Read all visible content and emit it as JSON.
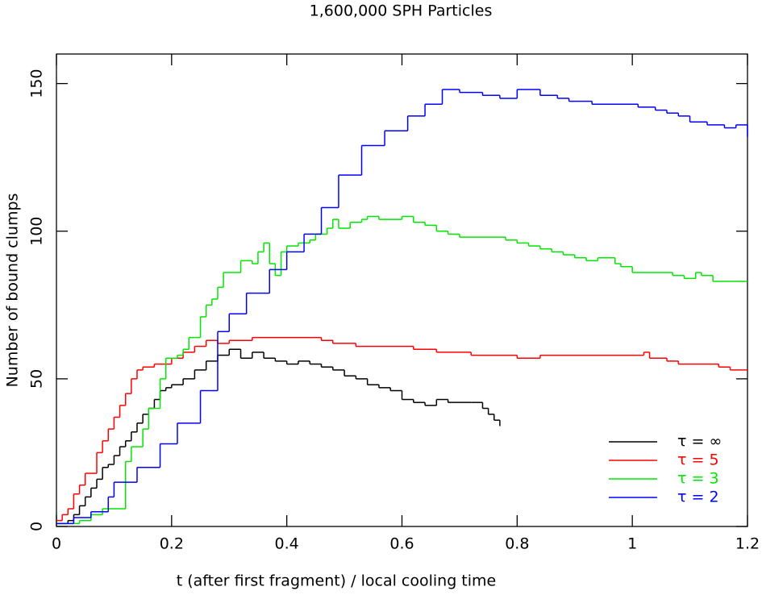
{
  "chart_data": {
    "type": "line",
    "step": true,
    "title": "1,600,000 SPH Particles",
    "x_label": "t (after first fragment) / local cooling time",
    "y_label": "Number of bound clumps",
    "xlim": [
      0,
      1.2
    ],
    "ylim": [
      0,
      160
    ],
    "xticks": [
      0,
      0.2,
      0.4,
      0.6,
      0.8,
      1,
      1.2
    ],
    "yticks": [
      0,
      50,
      100,
      150
    ],
    "legend": "lower right",
    "series": [
      {
        "name": "τ = ∞",
        "color": "#000000",
        "x": [
          0,
          0.02,
          0.03,
          0.04,
          0.05,
          0.06,
          0.07,
          0.08,
          0.09,
          0.1,
          0.11,
          0.12,
          0.13,
          0.14,
          0.15,
          0.16,
          0.17,
          0.18,
          0.19,
          0.2,
          0.22,
          0.24,
          0.26,
          0.28,
          0.3,
          0.32,
          0.34,
          0.36,
          0.38,
          0.4,
          0.42,
          0.44,
          0.46,
          0.48,
          0.5,
          0.52,
          0.54,
          0.56,
          0.58,
          0.6,
          0.62,
          0.64,
          0.66,
          0.68,
          0.72,
          0.74,
          0.75,
          0.76,
          0.77
        ],
        "values": [
          1,
          2,
          4,
          7,
          10,
          13,
          16,
          20,
          21,
          24,
          27,
          29,
          32,
          35,
          38,
          40,
          43,
          46,
          47,
          48,
          50,
          53,
          56,
          58,
          60,
          57,
          59,
          57,
          56,
          55,
          56,
          55,
          54,
          53,
          51,
          50,
          48,
          47,
          46,
          43,
          42,
          41,
          43,
          42,
          42,
          40,
          38,
          36,
          34
        ]
      },
      {
        "name": "τ = 5",
        "color": "#ff0000",
        "x": [
          0,
          0.01,
          0.02,
          0.03,
          0.04,
          0.05,
          0.07,
          0.08,
          0.09,
          0.1,
          0.11,
          0.12,
          0.13,
          0.14,
          0.15,
          0.17,
          0.2,
          0.22,
          0.24,
          0.26,
          0.28,
          0.3,
          0.34,
          0.46,
          0.48,
          0.52,
          0.62,
          0.66,
          0.72,
          0.8,
          0.84,
          1.02,
          1.03,
          1.06,
          1.08,
          1.15,
          1.17,
          1.2
        ],
        "values": [
          2,
          4,
          6,
          11,
          14,
          18,
          25,
          29,
          33,
          37,
          41,
          45,
          50,
          53,
          54,
          55,
          57,
          59,
          61,
          63,
          62,
          63,
          64,
          63,
          62,
          61,
          60,
          59,
          58,
          57,
          58,
          59,
          57,
          56,
          55,
          54,
          53,
          53
        ]
      },
      {
        "name": "τ = 3",
        "color": "#00e600",
        "x": [
          0,
          0.04,
          0.06,
          0.08,
          0.12,
          0.13,
          0.15,
          0.16,
          0.18,
          0.19,
          0.21,
          0.22,
          0.23,
          0.25,
          0.26,
          0.27,
          0.28,
          0.29,
          0.32,
          0.34,
          0.35,
          0.36,
          0.37,
          0.38,
          0.39,
          0.4,
          0.42,
          0.44,
          0.45,
          0.47,
          0.48,
          0.49,
          0.51,
          0.53,
          0.54,
          0.56,
          0.6,
          0.62,
          0.64,
          0.66,
          0.68,
          0.7,
          0.78,
          0.8,
          0.82,
          0.84,
          0.86,
          0.88,
          0.9,
          0.92,
          0.94,
          0.97,
          0.98,
          1,
          1.07,
          1.09,
          1.11,
          1.12,
          1.14,
          1.2
        ],
        "values": [
          1,
          2,
          4,
          6,
          22,
          27,
          33,
          40,
          50,
          57,
          58,
          60,
          64,
          71,
          75,
          77,
          81,
          86,
          90,
          89,
          93,
          96,
          89,
          85,
          93,
          95,
          96,
          97,
          99,
          101,
          104,
          101,
          103,
          104,
          105,
          104,
          105,
          103,
          102,
          100,
          99,
          98,
          97,
          96,
          95,
          94,
          93,
          92,
          91,
          90,
          91,
          89,
          88,
          86,
          85,
          84,
          86,
          85,
          83,
          83
        ]
      },
      {
        "name": "τ = 2",
        "color": "#0000ff",
        "x": [
          0,
          0.03,
          0.06,
          0.09,
          0.1,
          0.14,
          0.18,
          0.21,
          0.25,
          0.28,
          0.3,
          0.33,
          0.37,
          0.4,
          0.43,
          0.46,
          0.49,
          0.53,
          0.57,
          0.61,
          0.64,
          0.67,
          0.7,
          0.74,
          0.77,
          0.8,
          0.84,
          0.87,
          0.89,
          0.93,
          1.01,
          1.04,
          1.06,
          1.08,
          1.1,
          1.13,
          1.16,
          1.18,
          1.2
        ],
        "values": [
          1,
          3,
          5,
          10,
          15,
          20,
          28,
          35,
          46,
          66,
          72,
          79,
          87,
          93,
          99,
          108,
          119,
          129,
          134,
          139,
          143,
          148,
          147,
          146,
          145,
          148,
          146,
          145,
          144,
          143,
          142,
          141,
          140,
          139,
          137,
          136,
          135,
          136,
          132
        ]
      }
    ]
  }
}
